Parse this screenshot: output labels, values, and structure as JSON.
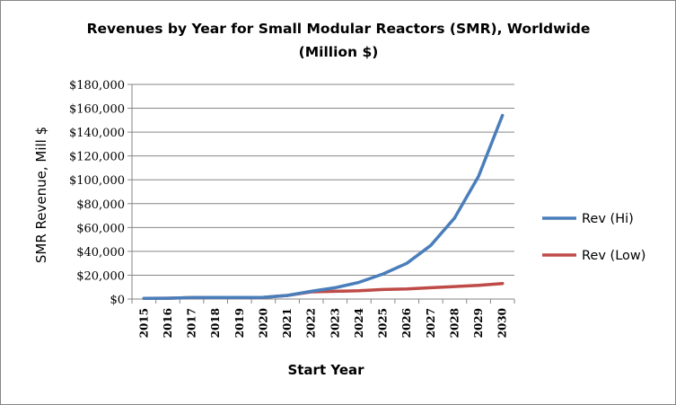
{
  "chart_data": {
    "type": "line",
    "title_line1": "Revenues by Year for Small Modular Reactors (SMR), Worldwide",
    "title_line2": "(Million $)",
    "xlabel": "Start Year",
    "ylabel": "SMR Revenue,  Mill $",
    "x": [
      "2015",
      "2016",
      "2017",
      "2018",
      "2019",
      "2020",
      "2021",
      "2022",
      "2023",
      "2024",
      "2025",
      "2026",
      "2027",
      "2028",
      "2029",
      "2030"
    ],
    "ylim": [
      0,
      180000
    ],
    "yticks": [
      0,
      20000,
      40000,
      60000,
      80000,
      100000,
      120000,
      140000,
      160000,
      180000
    ],
    "ytick_labels": [
      "$0",
      "$20,000",
      "$40,000",
      "$60,000",
      "$80,000",
      "$100,000",
      "$120,000",
      "$140,000",
      "$160,000",
      "$180,000"
    ],
    "grid": "horizontal",
    "legend_position": "right",
    "series": [
      {
        "name": "Rev (Hi)",
        "color": "#4a7ebb",
        "values": [
          500,
          700,
          1200,
          1300,
          1300,
          1400,
          3000,
          6500,
          9500,
          14000,
          21000,
          30000,
          45000,
          68000,
          103000,
          154000
        ]
      },
      {
        "name": "Rev (Low)",
        "color": "#be4b48",
        "values": [
          500,
          700,
          1200,
          1300,
          1300,
          1400,
          3000,
          6000,
          6500,
          7000,
          8000,
          8500,
          9500,
          10500,
          11500,
          13000
        ]
      }
    ]
  }
}
